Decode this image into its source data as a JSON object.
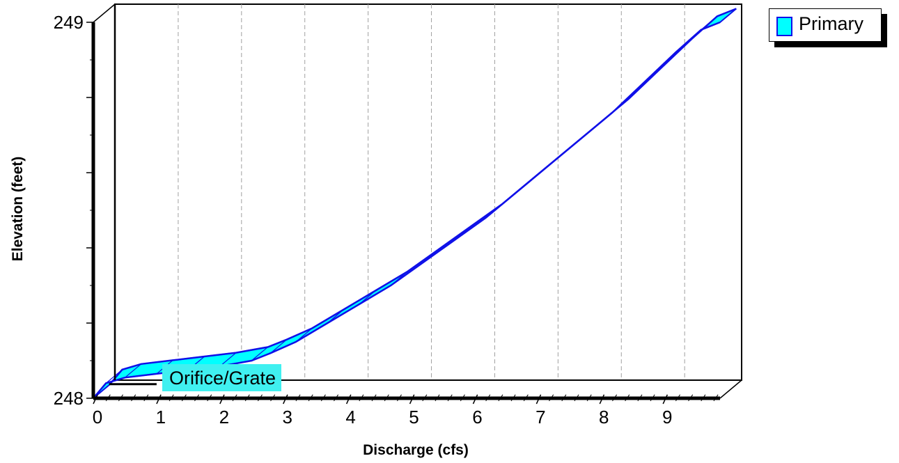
{
  "chart_data": {
    "type": "area",
    "xlabel": "Discharge  (cfs)",
    "ylabel": "Elevation  (feet)",
    "xlim": [
      0,
      9.9
    ],
    "ylim": [
      248,
      249
    ],
    "x_ticks": [
      "0",
      "1",
      "2",
      "3",
      "4",
      "5",
      "6",
      "7",
      "8",
      "9"
    ],
    "y_ticks": [
      "248",
      "249"
    ],
    "grid": "vertical dashed",
    "legend_position": "top-right",
    "series": [
      {
        "name": "Primary",
        "color": "#00ffff",
        "line_color": "#1010e8",
        "x": [
          0,
          0.2,
          0.5,
          1.0,
          1.5,
          2.0,
          2.5,
          2.8,
          3.2,
          3.7,
          4.2,
          4.7,
          5.2,
          5.7,
          6.2,
          6.7,
          7.2,
          7.7,
          8.2,
          8.7,
          9.2,
          9.6,
          9.9
        ],
        "y": [
          248.0,
          248.04,
          248.055,
          248.065,
          248.075,
          248.085,
          248.1,
          248.12,
          248.15,
          248.2,
          248.25,
          248.3,
          248.36,
          248.42,
          248.48,
          248.55,
          248.62,
          248.69,
          248.76,
          248.84,
          248.92,
          248.98,
          249.0
        ]
      }
    ],
    "annotations": [
      {
        "text": "Orifice/Grate",
        "x": 1.0,
        "y": 248.03,
        "background": "#40f0f0"
      }
    ]
  }
}
